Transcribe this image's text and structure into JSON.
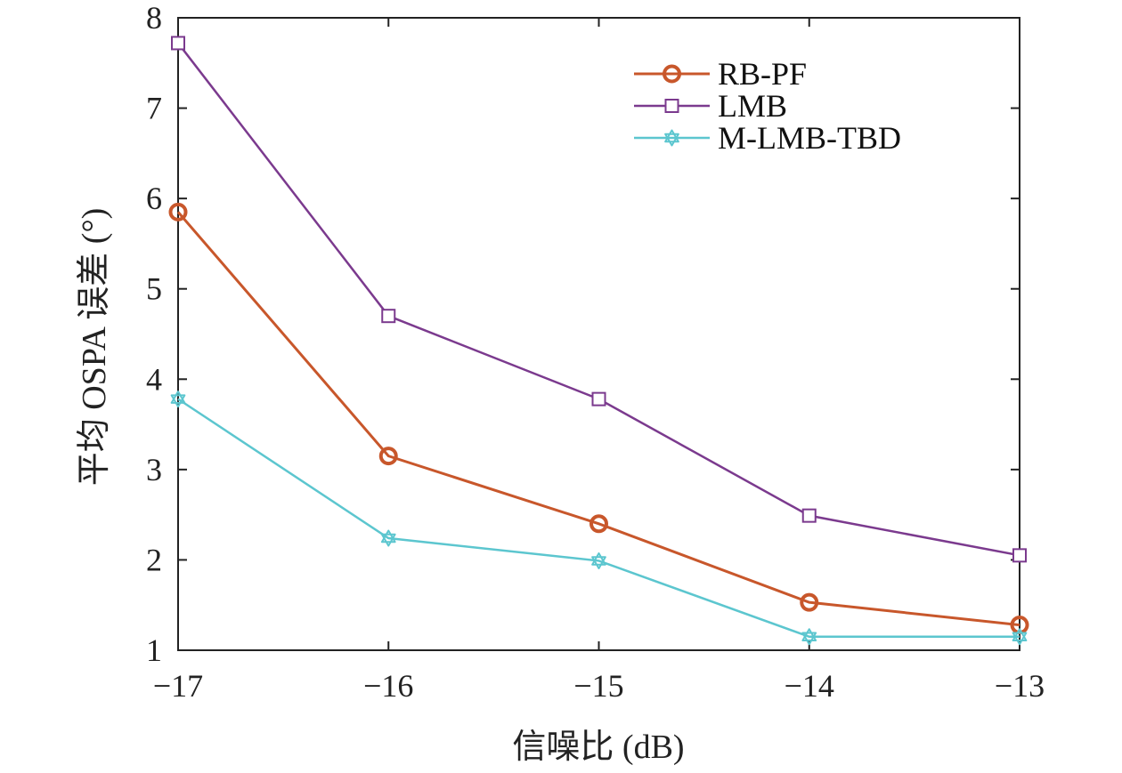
{
  "chart_data": {
    "type": "line",
    "title": "",
    "xlabel": "信噪比 (dB)",
    "ylabel": "平均 OSPA 误差 (°)",
    "xlim": [
      -17,
      -13
    ],
    "ylim": [
      1,
      8
    ],
    "x": [
      -17,
      -16,
      -15,
      -14,
      -13
    ],
    "x_tick_labels": [
      "−17",
      "−16",
      "−15",
      "−14",
      "−13"
    ],
    "y_ticks": [
      1,
      2,
      3,
      4,
      5,
      6,
      7,
      8
    ],
    "y_tick_labels": [
      "1",
      "2",
      "3",
      "4",
      "5",
      "6",
      "7",
      "8"
    ],
    "grid": false,
    "legend_position": "top-right",
    "series": [
      {
        "name": "RB-PF",
        "values": [
          5.85,
          3.15,
          2.4,
          1.53,
          1.28
        ],
        "color": "#c8572b",
        "marker": "circle"
      },
      {
        "name": "LMB",
        "values": [
          7.72,
          4.7,
          3.78,
          2.49,
          2.05
        ],
        "color": "#7b3a8e",
        "marker": "square"
      },
      {
        "name": "M-LMB-TBD",
        "values": [
          3.78,
          2.24,
          1.99,
          1.15,
          1.15
        ],
        "color": "#5cc6cf",
        "marker": "star"
      }
    ]
  }
}
